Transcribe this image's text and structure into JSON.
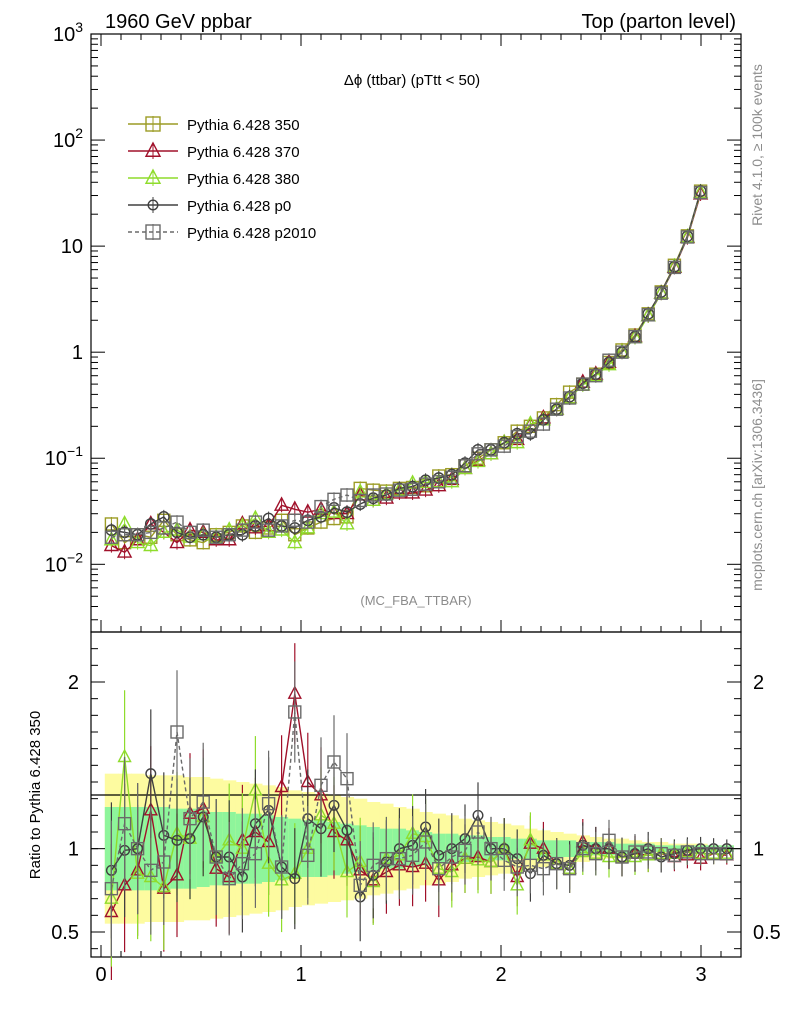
{
  "header": {
    "left": "1960 GeV ppbar",
    "right": "Top (parton level)"
  },
  "side_labels": {
    "rivet": "Rivet 4.1.0, ≥ 100k events",
    "mcplots": "mcplots.cern.ch [arXiv:1306.3436]"
  },
  "chart_data": {
    "type": "line",
    "title": "Δϕ (ttbar) (pTtt < 50)",
    "analysis_tag": "(MC_FBA_TTBAR)",
    "xlabel": "",
    "ylabel_main": "",
    "ylabel_ratio": "Ratio to Pythia 6.428 350",
    "xlim": [
      -0.05,
      3.2
    ],
    "ylim_main": [
      0.0023,
      1000
    ],
    "ylim_ratio": [
      0.35,
      2.3
    ],
    "yscale_main": "log",
    "legend_position": "top-left",
    "x_ticks": [
      "0",
      "1",
      "2",
      "3"
    ],
    "y_ticks_main": [
      "10^-2",
      "10^-1",
      "1",
      "10",
      "10^2",
      "10^3"
    ],
    "y_ticks_ratio": [
      "0.5",
      "1",
      "2"
    ],
    "x": [
      0.052,
      0.118,
      0.183,
      0.249,
      0.314,
      0.38,
      0.445,
      0.511,
      0.576,
      0.641,
      0.707,
      0.772,
      0.838,
      0.903,
      0.969,
      1.034,
      1.1,
      1.165,
      1.23,
      1.296,
      1.361,
      1.427,
      1.492,
      1.558,
      1.623,
      1.689,
      1.754,
      1.82,
      1.885,
      1.95,
      2.016,
      2.081,
      2.147,
      2.212,
      2.278,
      2.343,
      2.409,
      2.474,
      2.54,
      2.605,
      2.67,
      2.736,
      2.801,
      2.867,
      2.932,
      2.998,
      3.063,
      3.129
    ],
    "series": [
      {
        "name": "Pythia 6.428 350",
        "color": "#9c9c25",
        "marker": "square-open",
        "dash": "solid",
        "values": [
          0.024,
          0.016,
          0.019,
          0.018,
          0.026,
          0.019,
          0.017,
          0.016,
          0.019,
          0.02,
          0.023,
          0.02,
          0.022,
          0.026,
          0.019,
          0.022,
          0.025,
          0.027,
          0.028,
          0.052,
          0.05,
          0.049,
          0.052,
          0.053,
          0.055,
          0.068,
          0.07,
          0.085,
          0.1,
          0.12,
          0.14,
          0.18,
          0.2,
          0.24,
          0.32,
          0.42,
          0.5,
          0.62,
          0.8,
          1.05,
          1.45,
          2.3,
          3.7,
          6.6,
          12.5,
          33.0,
          0,
          0
        ]
      },
      {
        "name": "Pythia 6.428 370",
        "color": "#a0102a",
        "marker": "triangle-open",
        "dash": "solid",
        "values": [
          0.015,
          0.013,
          0.017,
          0.024,
          0.02,
          0.016,
          0.021,
          0.02,
          0.017,
          0.017,
          0.024,
          0.022,
          0.023,
          0.036,
          0.033,
          0.031,
          0.033,
          0.03,
          0.03,
          0.045,
          0.04,
          0.042,
          0.047,
          0.047,
          0.05,
          0.055,
          0.063,
          0.08,
          0.095,
          0.11,
          0.14,
          0.15,
          0.205,
          0.24,
          0.29,
          0.37,
          0.52,
          0.62,
          0.8,
          1.0,
          1.4,
          2.2,
          3.6,
          6.3,
          12.0,
          31.0,
          0,
          0
        ]
      },
      {
        "name": "Pythia 6.428 380",
        "color": "#8fdc2c",
        "marker": "triangle-open",
        "dash": "solid",
        "values": [
          0.017,
          0.024,
          0.016,
          0.015,
          0.02,
          0.021,
          0.018,
          0.019,
          0.018,
          0.021,
          0.023,
          0.027,
          0.02,
          0.021,
          0.016,
          0.022,
          0.03,
          0.031,
          0.024,
          0.048,
          0.04,
          0.046,
          0.05,
          0.058,
          0.059,
          0.06,
          0.06,
          0.08,
          0.093,
          0.11,
          0.14,
          0.14,
          0.21,
          0.23,
          0.29,
          0.37,
          0.49,
          0.6,
          0.76,
          1.0,
          1.37,
          2.2,
          3.6,
          6.4,
          12.2,
          32.0,
          0,
          0
        ]
      },
      {
        "name": "Pythia 6.428 p0",
        "color": "#404040",
        "marker": "circle-open",
        "dash": "solid",
        "values": [
          0.021,
          0.02,
          0.019,
          0.024,
          0.028,
          0.02,
          0.018,
          0.019,
          0.018,
          0.019,
          0.019,
          0.023,
          0.027,
          0.023,
          0.022,
          0.026,
          0.028,
          0.034,
          0.031,
          0.037,
          0.042,
          0.045,
          0.052,
          0.054,
          0.062,
          0.065,
          0.07,
          0.09,
          0.12,
          0.12,
          0.14,
          0.17,
          0.17,
          0.23,
          0.29,
          0.38,
          0.51,
          0.62,
          0.8,
          1.0,
          1.4,
          2.3,
          3.7,
          6.4,
          12.4,
          33.0,
          0,
          0
        ]
      },
      {
        "name": "Pythia 6.428 p2010",
        "color": "#6a6a6a",
        "marker": "square-open",
        "dash": "dashed",
        "values": [
          0.018,
          0.019,
          0.019,
          0.02,
          0.022,
          0.025,
          0.02,
          0.021,
          0.018,
          0.019,
          0.021,
          0.025,
          0.021,
          0.023,
          0.026,
          0.025,
          0.035,
          0.041,
          0.045,
          0.04,
          0.045,
          0.046,
          0.05,
          0.051,
          0.057,
          0.06,
          0.066,
          0.085,
          0.11,
          0.12,
          0.13,
          0.16,
          0.18,
          0.21,
          0.29,
          0.37,
          0.5,
          0.6,
          0.84,
          1.0,
          1.4,
          2.25,
          3.6,
          6.3,
          12.2,
          32.0,
          0,
          0
        ]
      }
    ],
    "ratio_series": [
      {
        "name": "Pythia 6.428 370",
        "values": [
          0.62,
          0.78,
          0.87,
          1.23,
          0.76,
          0.84,
          1.21,
          1.24,
          0.88,
          0.83,
          1.05,
          1.1,
          1.04,
          1.37,
          1.93,
          1.4,
          1.32,
          1.1,
          1.05,
          0.87,
          0.81,
          0.86,
          0.9,
          0.89,
          0.91,
          0.81,
          0.9,
          0.94,
          0.95,
          0.92,
          1.0,
          0.83,
          1.03,
          1.0,
          0.91,
          0.88,
          1.04,
          1.0,
          1.0,
          0.95,
          0.97,
          0.96,
          0.97,
          0.95,
          0.96,
          0.94,
          0.97,
          0.96
        ]
      },
      {
        "name": "Pythia 6.428 380",
        "values": [
          0.7,
          1.55,
          0.85,
          0.83,
          0.77,
          1.09,
          1.06,
          1.19,
          0.95,
          1.05,
          1.0,
          1.35,
          0.91,
          0.81,
          0.85,
          1.0,
          1.2,
          1.15,
          0.86,
          0.92,
          0.8,
          0.94,
          0.96,
          1.09,
          1.07,
          0.88,
          0.86,
          0.94,
          0.93,
          0.92,
          1.0,
          0.78,
          1.05,
          0.96,
          0.91,
          0.88,
          0.98,
          0.97,
          0.95,
          0.95,
          0.95,
          0.96,
          0.97,
          0.97,
          0.98,
          0.97,
          0.97,
          0.97
        ]
      },
      {
        "name": "Pythia 6.428 p0",
        "values": [
          0.87,
          0.99,
          1.0,
          1.45,
          1.08,
          1.05,
          1.06,
          1.19,
          0.95,
          0.95,
          0.83,
          1.15,
          1.23,
          0.89,
          0.82,
          1.18,
          1.12,
          1.26,
          1.11,
          0.71,
          0.84,
          0.92,
          1.0,
          1.02,
          1.13,
          0.96,
          1.0,
          1.06,
          1.2,
          1.0,
          1.0,
          0.94,
          0.85,
          0.96,
          0.91,
          0.9,
          1.02,
          1.0,
          1.0,
          0.95,
          0.97,
          1.0,
          0.95,
          0.97,
          0.99,
          1.0,
          1.0,
          1.0
        ]
      },
      {
        "name": "Pythia 6.428 p2010",
        "values": [
          0.76,
          1.15,
          1.0,
          0.87,
          0.92,
          1.7,
          1.18,
          1.28,
          0.95,
          0.82,
          0.91,
          0.97,
          1.27,
          0.89,
          1.82,
          0.96,
          1.38,
          1.52,
          1.42,
          0.78,
          0.9,
          0.94,
          0.94,
          0.96,
          1.04,
          0.88,
          0.95,
          0.99,
          1.1,
          1.0,
          0.93,
          0.89,
          0.9,
          0.88,
          0.91,
          0.88,
          1.0,
          0.97,
          1.05,
          0.95,
          0.98,
          0.98,
          0.97,
          0.96,
          0.98,
          0.97,
          0.97,
          0.97
        ]
      }
    ],
    "ratio_band_inner_halfwidth": [
      0.25,
      0.25,
      0.25,
      0.25,
      0.25,
      0.24,
      0.24,
      0.23,
      0.22,
      0.22,
      0.21,
      0.21,
      0.2,
      0.19,
      0.18,
      0.17,
      0.17,
      0.16,
      0.15,
      0.14,
      0.13,
      0.12,
      0.12,
      0.11,
      0.1,
      0.09,
      0.09,
      0.08,
      0.08,
      0.07,
      0.07,
      0.06,
      0.06,
      0.05,
      0.05,
      0.05,
      0.04,
      0.04,
      0.04,
      0.03,
      0.03,
      0.03,
      0.02,
      0.02,
      0.02,
      0.02,
      0.02,
      0.02
    ],
    "ratio_band_outer_halfwidth": [
      0.45,
      0.45,
      0.45,
      0.44,
      0.44,
      0.44,
      0.43,
      0.43,
      0.42,
      0.41,
      0.4,
      0.39,
      0.38,
      0.37,
      0.35,
      0.34,
      0.33,
      0.32,
      0.31,
      0.3,
      0.28,
      0.27,
      0.25,
      0.24,
      0.22,
      0.21,
      0.2,
      0.18,
      0.17,
      0.16,
      0.15,
      0.14,
      0.12,
      0.11,
      0.1,
      0.09,
      0.08,
      0.07,
      0.06,
      0.06,
      0.05,
      0.04,
      0.04,
      0.03,
      0.03,
      0.03,
      0.02,
      0.02
    ]
  }
}
